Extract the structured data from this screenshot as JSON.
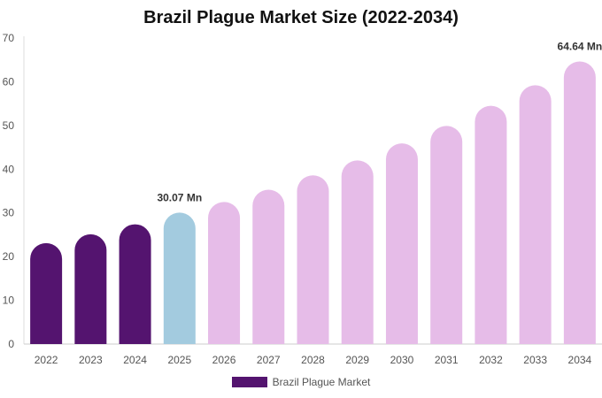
{
  "chart_data": {
    "type": "bar",
    "title": "Brazil Plague Market Size (2022-2034)",
    "xlabel": "",
    "ylabel": "",
    "categories": [
      "2022",
      "2023",
      "2024",
      "2025",
      "2026",
      "2027",
      "2028",
      "2029",
      "2030",
      "2031",
      "2032",
      "2033",
      "2034"
    ],
    "series": [
      {
        "name": "Brazil Plague Market",
        "values": [
          23.1,
          25.1,
          27.4,
          30.07,
          32.5,
          35.3,
          38.6,
          42.0,
          45.9,
          49.9,
          54.5,
          59.2,
          64.64
        ]
      }
    ],
    "bar_colors": [
      "#54146f",
      "#54146f",
      "#54146f",
      "#a3cbdf",
      "#e6bce8",
      "#e6bce8",
      "#e6bce8",
      "#e6bce8",
      "#e6bce8",
      "#e6bce8",
      "#e6bce8",
      "#e6bce8",
      "#e6bce8"
    ],
    "legend_color": "#54146f",
    "data_labels": [
      {
        "index": 3,
        "text": "30.07 Mn"
      },
      {
        "index": 12,
        "text": "64.64 Mn"
      }
    ],
    "ylim": [
      0,
      70
    ],
    "yticks": [
      0,
      10,
      20,
      30,
      40,
      50,
      60,
      70
    ],
    "grid": false,
    "legend_position": "bottom"
  }
}
